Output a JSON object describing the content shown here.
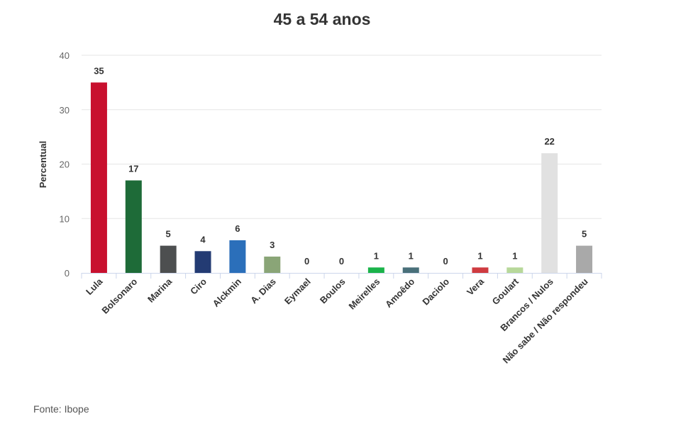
{
  "chart_data": {
    "type": "bar",
    "title": "45 a 54 anos",
    "xlabel": "",
    "ylabel": "Percentual",
    "ylim": [
      0,
      40
    ],
    "yticks": [
      0,
      10,
      20,
      30,
      40
    ],
    "grid": true,
    "legend": "none",
    "categories": [
      "Lula",
      "Bolsonaro",
      "Marina",
      "Ciro",
      "Alckmin",
      "A. Dias",
      "Eymael",
      "Boulos",
      "Meirelles",
      "Amoêdo",
      "Daciolo",
      "Vera",
      "Goulart",
      "Brancos / Nulos",
      "Não sabe / Não respondeu"
    ],
    "values": [
      35,
      17,
      5,
      4,
      6,
      3,
      0,
      0,
      1,
      1,
      0,
      1,
      1,
      22,
      5
    ],
    "colors": [
      "#c8102e",
      "#1e6b38",
      "#4d4f50",
      "#233b73",
      "#2b6fba",
      "#8aa577",
      "#999999",
      "#999999",
      "#1ab34a",
      "#49707a",
      "#999999",
      "#cf3b40",
      "#b7d89a",
      "#e1e1e1",
      "#a9a9a9"
    ]
  },
  "source": "Fonte: Ibope"
}
